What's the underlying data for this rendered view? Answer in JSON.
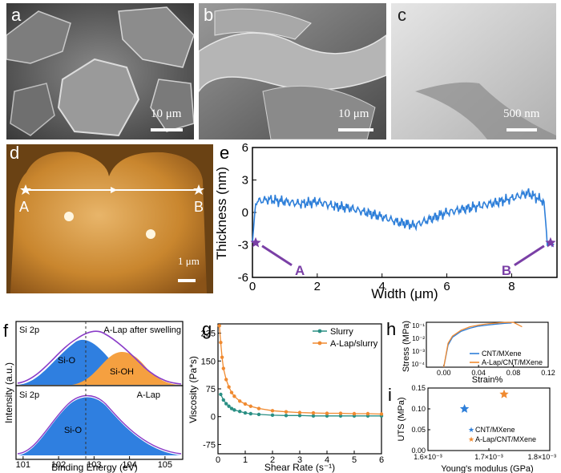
{
  "panels": {
    "a": {
      "label": "a",
      "scale_bar": "10 μm"
    },
    "b": {
      "label": "b",
      "scale_bar": "10 μm"
    },
    "c": {
      "label": "c",
      "scale_bar": "500 nm"
    },
    "d": {
      "label": "d",
      "scale_bar": "1 μm",
      "marker_a": "A",
      "marker_b": "B"
    }
  },
  "chart_data": [
    {
      "id": "e",
      "type": "line",
      "panel_label": "e",
      "xlabel": "Width (μm)",
      "ylabel": "Thickness (nm)",
      "xlim": [
        0,
        9.4
      ],
      "ylim": [
        -6,
        6
      ],
      "xticks": [
        "0",
        "2",
        "4",
        "6",
        "8"
      ],
      "yticks": [
        "-6",
        "-3",
        "0",
        "3",
        "6"
      ],
      "x": [
        0,
        0.1,
        0.5,
        1.0,
        1.5,
        2.0,
        2.5,
        3.0,
        3.5,
        4.0,
        4.5,
        5.0,
        5.5,
        6.0,
        6.5,
        7.0,
        7.5,
        8.0,
        8.5,
        9.0,
        9.1,
        9.3
      ],
      "y": [
        -2.8,
        1.0,
        1.2,
        1.0,
        0.8,
        1.0,
        0.6,
        0.4,
        0.0,
        -0.4,
        -0.9,
        -1.2,
        -0.6,
        0.0,
        0.3,
        0.6,
        0.9,
        1.3,
        1.8,
        1.0,
        -2.8,
        -2.9
      ],
      "markers": [
        {
          "label": "A",
          "x": 0.1,
          "y": -2.8
        },
        {
          "label": "B",
          "x": 9.2,
          "y": -2.8
        }
      ],
      "color": "#2e7fd9",
      "marker_color": "#7a3fa6"
    },
    {
      "id": "f",
      "type": "area",
      "panel_label": "f",
      "xlabel": "Binding Energy (eV)",
      "ylabel": "Intensity (a.u.)",
      "xlim": [
        100.8,
        105.5
      ],
      "xticks": [
        "101",
        "102",
        "103",
        "104",
        "105"
      ],
      "top": {
        "title": "Si 2p",
        "sample": "A-Lap after swelling",
        "peaks": [
          {
            "label": "Si-O",
            "center": 102.8,
            "color": "#2f7fe0"
          },
          {
            "label": "Si-OH",
            "center": 103.5,
            "color": "#f5a040"
          }
        ]
      },
      "bottom": {
        "title": "Si 2p",
        "sample": "A-Lap",
        "peaks": [
          {
            "label": "Si-O",
            "center": 102.9,
            "color": "#2f7fe0"
          }
        ]
      },
      "reference_line": 102.8
    },
    {
      "id": "g",
      "type": "line",
      "panel_label": "g",
      "xlabel": "Shear Rate (s⁻¹)",
      "ylabel": "Viscosity (Pa*s)",
      "xlim": [
        0,
        6
      ],
      "ylim": [
        -100,
        250
      ],
      "xticks": [
        "0",
        "1",
        "2",
        "3",
        "4",
        "5",
        "6"
      ],
      "yticks": [
        "-75",
        "0",
        "75",
        "150",
        "225"
      ],
      "series": [
        {
          "name": "Slurry",
          "color": "#2a8f84",
          "x": [
            0.1,
            0.2,
            0.3,
            0.4,
            0.5,
            0.6,
            0.8,
            1.0,
            1.2,
            1.5,
            2.0,
            2.5,
            3.0,
            3.5,
            4.0,
            4.5,
            5.0,
            5.5,
            6.0
          ],
          "y": [
            60,
            45,
            35,
            28,
            22,
            18,
            14,
            10,
            8,
            6,
            4,
            3,
            3,
            2,
            2,
            2,
            2,
            2,
            2
          ]
        },
        {
          "name": "A-Lap/slurry",
          "color": "#f08a30",
          "x": [
            0.05,
            0.1,
            0.15,
            0.2,
            0.3,
            0.4,
            0.5,
            0.6,
            0.8,
            1.0,
            1.2,
            1.5,
            2.0,
            2.5,
            3.0,
            3.5,
            4.0,
            4.5,
            5.0,
            5.5,
            6.0
          ],
          "y": [
            245,
            200,
            160,
            130,
            100,
            80,
            65,
            55,
            42,
            34,
            28,
            22,
            16,
            13,
            11,
            10,
            9,
            9,
            8,
            8,
            7
          ]
        }
      ]
    },
    {
      "id": "h",
      "type": "line",
      "panel_label": "h",
      "xlabel": "Strain%",
      "ylabel": "Stress (MPa)",
      "xlim": [
        -0.02,
        0.12
      ],
      "xticks": [
        "0.00",
        "0.04",
        "0.08",
        "0.12"
      ],
      "yticks": [
        "10⁻¹",
        "10⁻²",
        "10⁻³",
        "10⁻⁴"
      ],
      "series": [
        {
          "name": "CNT/MXene",
          "color": "#2e7fd9",
          "x": [
            0.0,
            0.005,
            0.01,
            0.02,
            0.03,
            0.04,
            0.05,
            0.06,
            0.07,
            0.078
          ],
          "y": [
            0.0001,
            0.003,
            0.01,
            0.025,
            0.04,
            0.055,
            0.065,
            0.075,
            0.085,
            0.09
          ]
        },
        {
          "name": "A-Lap/CNT/MXene",
          "color": "#f08a30",
          "x": [
            0.0,
            0.005,
            0.01,
            0.02,
            0.03,
            0.04,
            0.05,
            0.06,
            0.07,
            0.08,
            0.09
          ],
          "y": [
            0.0001,
            0.004,
            0.012,
            0.03,
            0.05,
            0.065,
            0.078,
            0.088,
            0.098,
            0.1,
            0.05
          ]
        }
      ]
    },
    {
      "id": "i",
      "type": "scatter",
      "panel_label": "i",
      "xlabel": "Young's modulus (GPa)",
      "ylabel": "UTS (MPa)",
      "xlim": [
        1.6,
        1.8
      ],
      "ylim": [
        0,
        0.15
      ],
      "xticks": [
        "1.6×10⁻³",
        "1.7×10⁻³",
        "1.8×10⁻³"
      ],
      "yticks": [
        "0.00",
        "0.05",
        "0.10",
        "0.15"
      ],
      "points": [
        {
          "name": "CNT/MXene",
          "x": 1.66,
          "y": 0.1,
          "color": "#2e7fd9"
        },
        {
          "name": "A-Lap/CNT/MXene",
          "x": 1.725,
          "y": 0.135,
          "color": "#f08a30"
        }
      ]
    }
  ]
}
